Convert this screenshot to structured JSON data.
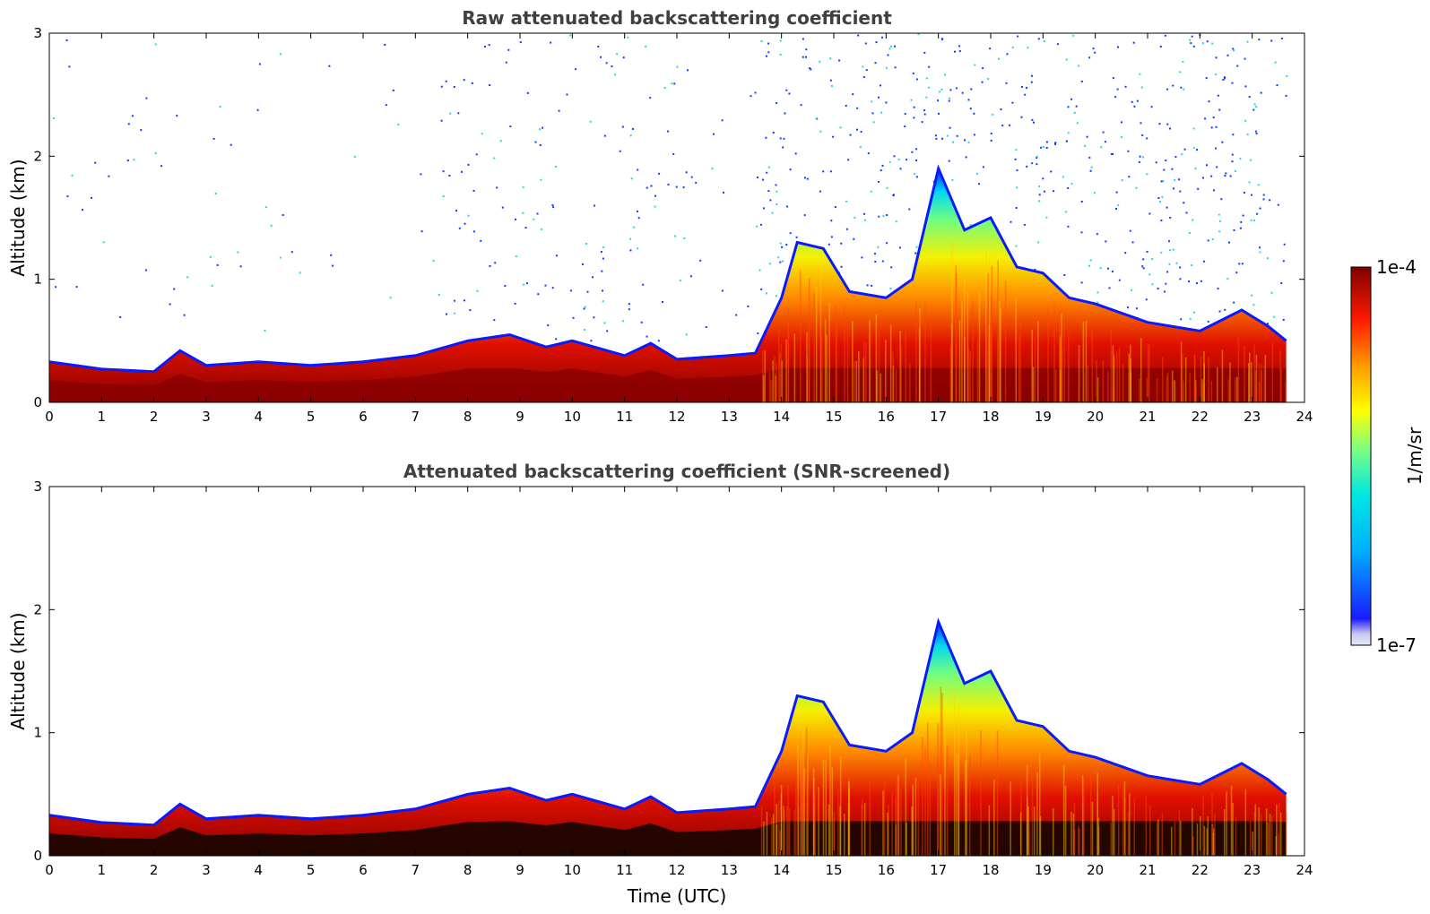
{
  "chart_data": [
    {
      "type": "heatmap",
      "title": "Raw attenuated backscattering coefficient",
      "xlabel": "",
      "ylabel": "Altitude (km)",
      "xlim": [
        0,
        24
      ],
      "ylim": [
        0,
        3
      ],
      "xticks": [
        "0",
        "1",
        "2",
        "3",
        "4",
        "5",
        "6",
        "7",
        "8",
        "9",
        "10",
        "11",
        "12",
        "13",
        "14",
        "15",
        "16",
        "17",
        "18",
        "19",
        "20",
        "21",
        "22",
        "23",
        "24"
      ],
      "yticks": [
        "0",
        "1",
        "2",
        "3"
      ],
      "data_end_hour": 23.65,
      "layer_top_km": [
        [
          0,
          0.33
        ],
        [
          1,
          0.27
        ],
        [
          2,
          0.25
        ],
        [
          2.5,
          0.42
        ],
        [
          3,
          0.3
        ],
        [
          4,
          0.33
        ],
        [
          5,
          0.3
        ],
        [
          6,
          0.33
        ],
        [
          7,
          0.38
        ],
        [
          8,
          0.5
        ],
        [
          8.8,
          0.55
        ],
        [
          9.5,
          0.45
        ],
        [
          10,
          0.5
        ],
        [
          11,
          0.38
        ],
        [
          11.5,
          0.48
        ],
        [
          12,
          0.35
        ],
        [
          13,
          0.38
        ],
        [
          13.5,
          0.4
        ],
        [
          14,
          0.85
        ],
        [
          14.3,
          1.3
        ],
        [
          14.8,
          1.25
        ],
        [
          15.3,
          0.9
        ],
        [
          16,
          0.85
        ],
        [
          16.5,
          1.0
        ],
        [
          17,
          1.9
        ],
        [
          17.5,
          1.4
        ],
        [
          18,
          1.5
        ],
        [
          18.5,
          1.1
        ],
        [
          19,
          1.05
        ],
        [
          19.5,
          0.85
        ],
        [
          20,
          0.8
        ],
        [
          21,
          0.65
        ],
        [
          22,
          0.58
        ],
        [
          22.8,
          0.75
        ],
        [
          23.3,
          0.62
        ],
        [
          23.65,
          0.5
        ]
      ],
      "note": "noise speckle above boundary layer"
    },
    {
      "type": "heatmap",
      "title": "Attenuated backscattering coefficient (SNR-screened)",
      "xlabel": "Time (UTC)",
      "ylabel": "Altitude (km)",
      "xlim": [
        0,
        24
      ],
      "ylim": [
        0,
        3
      ],
      "xticks": [
        "0",
        "1",
        "2",
        "3",
        "4",
        "5",
        "6",
        "7",
        "8",
        "9",
        "10",
        "11",
        "12",
        "13",
        "14",
        "15",
        "16",
        "17",
        "18",
        "19",
        "20",
        "21",
        "22",
        "23",
        "24"
      ],
      "yticks": [
        "0",
        "1",
        "2",
        "3"
      ],
      "data_end_hour": 23.65,
      "layer_top_km": [
        [
          0,
          0.33
        ],
        [
          1,
          0.27
        ],
        [
          2,
          0.25
        ],
        [
          2.5,
          0.42
        ],
        [
          3,
          0.3
        ],
        [
          4,
          0.33
        ],
        [
          5,
          0.3
        ],
        [
          6,
          0.33
        ],
        [
          7,
          0.38
        ],
        [
          8,
          0.5
        ],
        [
          8.8,
          0.55
        ],
        [
          9.5,
          0.45
        ],
        [
          10,
          0.5
        ],
        [
          11,
          0.38
        ],
        [
          11.5,
          0.48
        ],
        [
          12,
          0.35
        ],
        [
          13,
          0.38
        ],
        [
          13.5,
          0.4
        ],
        [
          14,
          0.85
        ],
        [
          14.3,
          1.3
        ],
        [
          14.8,
          1.25
        ],
        [
          15.3,
          0.9
        ],
        [
          16,
          0.85
        ],
        [
          16.5,
          1.0
        ],
        [
          17,
          1.9
        ],
        [
          17.5,
          1.4
        ],
        [
          18,
          1.5
        ],
        [
          18.5,
          1.1
        ],
        [
          19,
          1.05
        ],
        [
          19.5,
          0.85
        ],
        [
          20,
          0.8
        ],
        [
          21,
          0.65
        ],
        [
          22,
          0.58
        ],
        [
          22.8,
          0.75
        ],
        [
          23.3,
          0.62
        ],
        [
          23.65,
          0.5
        ]
      ],
      "note": "black saturated core near surface"
    }
  ],
  "colorbar": {
    "label": "1/m/sr",
    "max_label": "1e-4",
    "min_label": "1e-7",
    "colors": [
      "#e8e8f8",
      "#0000ff",
      "#00c8ff",
      "#7fff7f",
      "#ffff00",
      "#ff7f00",
      "#ff0000",
      "#800000"
    ]
  }
}
